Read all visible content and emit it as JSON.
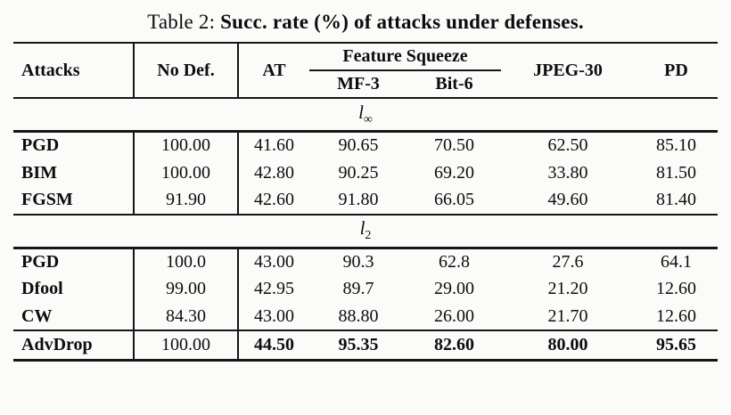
{
  "title": {
    "prefix": "Table 2: ",
    "emphasis": "Succ. rate (%) of attacks under defenses."
  },
  "table": {
    "headers": {
      "attacks": "Attacks",
      "no_def": "No Def.",
      "at": "AT",
      "feature_squeeze": "Feature Squeeze",
      "mf3": "MF-3",
      "bit6": "Bit-6",
      "jpeg30": "JPEG-30",
      "pd": "PD"
    },
    "sections": [
      {
        "label_base": "l",
        "label_sub": "∞",
        "rows": [
          {
            "attack": "PGD",
            "no_def": "100.00",
            "at": "41.60",
            "mf3": "90.65",
            "bit6": "70.50",
            "jpeg30": "62.50",
            "pd": "85.10"
          },
          {
            "attack": "BIM",
            "no_def": "100.00",
            "at": "42.80",
            "mf3": "90.25",
            "bit6": "69.20",
            "jpeg30": "33.80",
            "pd": "81.50"
          },
          {
            "attack": "FGSM",
            "no_def": "91.90",
            "at": "42.60",
            "mf3": "91.80",
            "bit6": "66.05",
            "jpeg30": "49.60",
            "pd": "81.40"
          }
        ]
      },
      {
        "label_base": "l",
        "label_sub": "2",
        "rows": [
          {
            "attack": "PGD",
            "no_def": "100.0",
            "at": "43.00",
            "mf3": "90.3",
            "bit6": "62.8",
            "jpeg30": "27.6",
            "pd": "64.1"
          },
          {
            "attack": "Dfool",
            "no_def": "99.00",
            "at": "42.95",
            "mf3": "89.7",
            "bit6": "29.00",
            "jpeg30": "21.20",
            "pd": "12.60"
          },
          {
            "attack": "CW",
            "no_def": "84.30",
            "at": "43.00",
            "mf3": "88.80",
            "bit6": "26.00",
            "jpeg30": "21.70",
            "pd": "12.60"
          }
        ]
      }
    ],
    "highlight_row": {
      "attack": "AdvDrop",
      "no_def": "100.00",
      "at": "44.50",
      "mf3": "95.35",
      "bit6": "82.60",
      "jpeg30": "80.00",
      "pd": "95.65"
    }
  },
  "chart_data": {
    "type": "table",
    "title": "Table 2: Succ. rate (%) of attacks under defenses.",
    "columns": [
      "Attacks",
      "No Def.",
      "AT",
      "MF-3",
      "Bit-6",
      "JPEG-30",
      "PD"
    ],
    "column_groups": [
      {
        "label": "Feature Squeeze",
        "columns": [
          "MF-3",
          "Bit-6"
        ]
      }
    ],
    "sections": [
      {
        "label": "l_inf",
        "rows": [
          [
            "PGD",
            100.0,
            41.6,
            90.65,
            70.5,
            62.5,
            85.1
          ],
          [
            "BIM",
            100.0,
            42.8,
            90.25,
            69.2,
            33.8,
            81.5
          ],
          [
            "FGSM",
            91.9,
            42.6,
            91.8,
            66.05,
            49.6,
            81.4
          ]
        ]
      },
      {
        "label": "l_2",
        "rows": [
          [
            "PGD",
            100.0,
            43.0,
            90.3,
            62.8,
            27.6,
            64.1
          ],
          [
            "Dfool",
            99.0,
            42.95,
            89.7,
            29.0,
            21.2,
            12.6
          ],
          [
            "CW",
            84.3,
            43.0,
            88.8,
            26.0,
            21.7,
            12.6
          ]
        ]
      }
    ],
    "footer_row": [
      "AdvDrop",
      100.0,
      44.5,
      95.35,
      82.6,
      80.0,
      95.65
    ],
    "bold_cells_note": "AdvDrop row values except No Def. are bold"
  }
}
